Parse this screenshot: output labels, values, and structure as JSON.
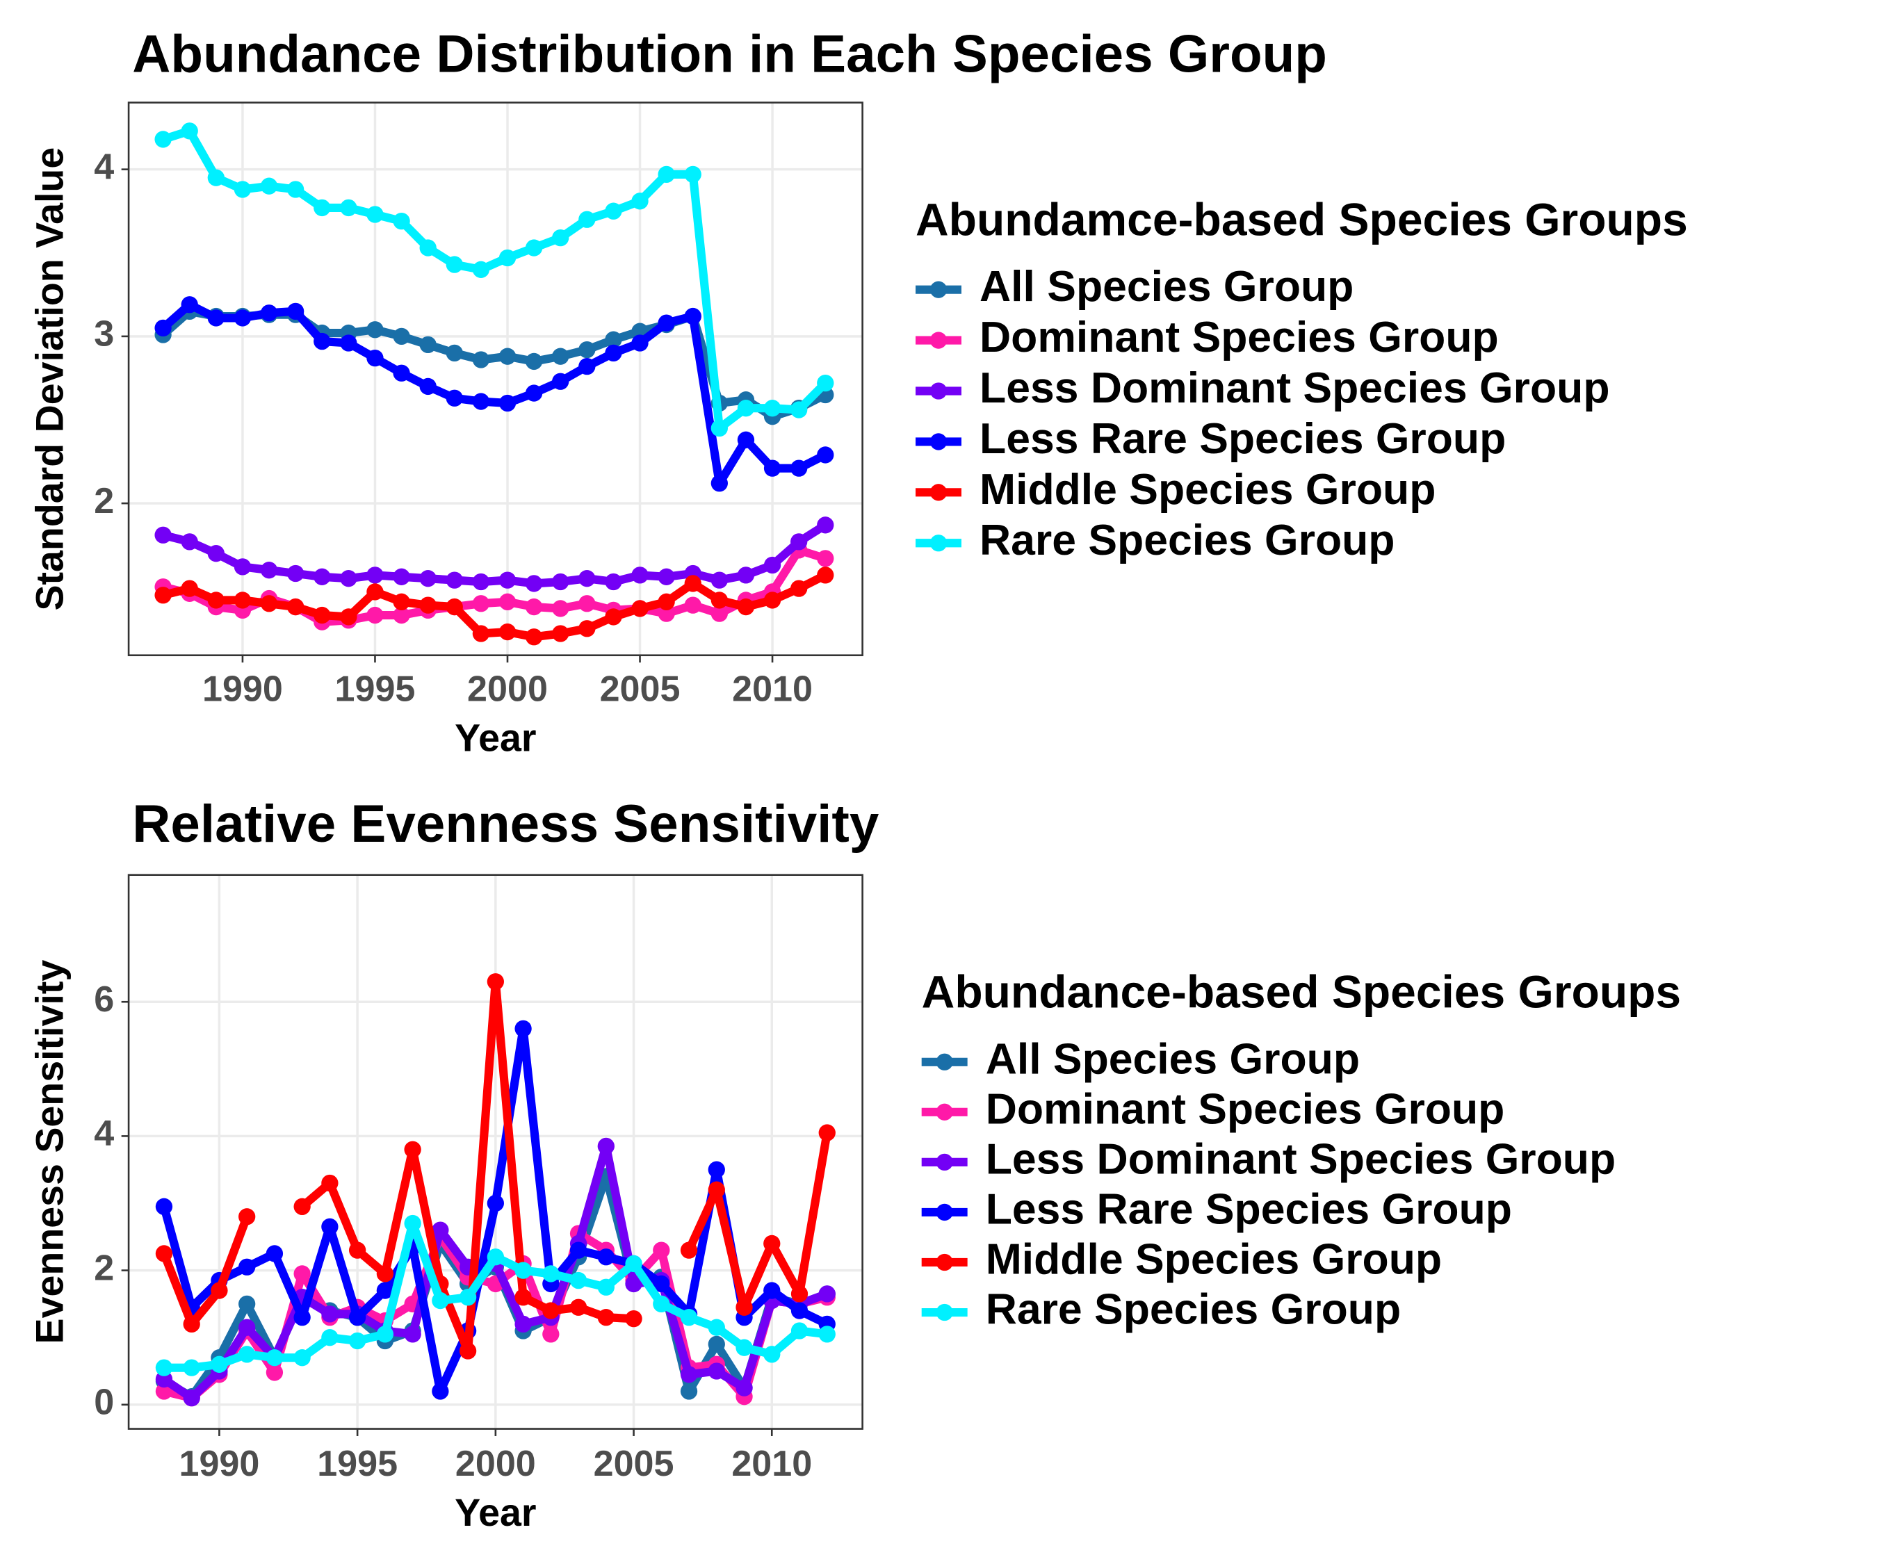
{
  "chart_data": [
    {
      "type": "line",
      "title": "Abundance Distribution in Each Species Group",
      "x_label": "Year",
      "y_label": "Standard Deviation Value",
      "legend_title": "Abundamce-based Species Groups",
      "legend_position": "right",
      "grid": true,
      "x": [
        1987,
        1988,
        1989,
        1990,
        1991,
        1992,
        1993,
        1994,
        1995,
        1996,
        1997,
        1998,
        1999,
        2000,
        2001,
        2002,
        2003,
        2004,
        2005,
        2006,
        2007,
        2008,
        2009,
        2010,
        2011,
        2012
      ],
      "xlim": [
        1985.7,
        2013.4
      ],
      "xticks": [
        1990,
        1995,
        2000,
        2005,
        2010
      ],
      "ylim": [
        1.09,
        4.4
      ],
      "yticks": [
        2,
        3,
        4
      ],
      "series": [
        {
          "name": "All Species Group",
          "color": "#1a6fa8",
          "values": [
            3.01,
            3.15,
            3.12,
            3.12,
            3.13,
            3.13,
            3.02,
            3.02,
            3.04,
            3.0,
            2.95,
            2.9,
            2.86,
            2.88,
            2.85,
            2.88,
            2.92,
            2.98,
            3.03,
            3.07,
            3.12,
            2.6,
            2.62,
            2.52,
            2.57,
            2.65
          ]
        },
        {
          "name": "Dominant Species Group",
          "color": "#ff19a8",
          "values": [
            1.5,
            1.46,
            1.38,
            1.36,
            1.43,
            1.38,
            1.29,
            1.3,
            1.33,
            1.33,
            1.36,
            1.38,
            1.4,
            1.41,
            1.38,
            1.37,
            1.4,
            1.36,
            1.37,
            1.34,
            1.39,
            1.34,
            1.42,
            1.47,
            1.72,
            1.67
          ]
        },
        {
          "name": "Less Dominant Species Group",
          "color": "#7300f5",
          "values": [
            1.81,
            1.77,
            1.7,
            1.62,
            1.6,
            1.58,
            1.56,
            1.55,
            1.57,
            1.56,
            1.55,
            1.54,
            1.53,
            1.54,
            1.52,
            1.53,
            1.55,
            1.53,
            1.57,
            1.56,
            1.58,
            1.54,
            1.57,
            1.63,
            1.77,
            1.87
          ]
        },
        {
          "name": "Less Rare Species Group",
          "color": "#0000ff",
          "values": [
            3.05,
            3.19,
            3.11,
            3.11,
            3.14,
            3.15,
            2.97,
            2.96,
            2.87,
            2.78,
            2.7,
            2.63,
            2.61,
            2.6,
            2.66,
            2.73,
            2.82,
            2.9,
            2.96,
            3.08,
            3.12,
            2.12,
            2.38,
            2.21,
            2.21,
            2.29
          ]
        },
        {
          "name": "Middle Species Group",
          "color": "#ff0000",
          "values": [
            1.45,
            1.49,
            1.42,
            1.42,
            1.4,
            1.38,
            1.33,
            1.32,
            1.47,
            1.41,
            1.39,
            1.38,
            1.22,
            1.23,
            1.2,
            1.22,
            1.25,
            1.32,
            1.37,
            1.41,
            1.52,
            1.42,
            1.38,
            1.42,
            1.49,
            1.57
          ]
        },
        {
          "name": "Rare Species Group",
          "color": "#00f0ff",
          "values": [
            4.18,
            4.23,
            3.95,
            3.88,
            3.9,
            3.88,
            3.77,
            3.77,
            3.73,
            3.69,
            3.53,
            3.43,
            3.4,
            3.47,
            3.53,
            3.59,
            3.7,
            3.75,
            3.81,
            3.97,
            3.97,
            2.45,
            2.57,
            2.57,
            2.56,
            2.72
          ]
        }
      ]
    },
    {
      "type": "line",
      "title": "Relative Evenness Sensitivity",
      "x_label": "Year",
      "y_label": "Evenness Sensitivity",
      "legend_title": "Abundance-based Species Groups",
      "legend_position": "right",
      "grid": true,
      "x": [
        1988,
        1989,
        1990,
        1991,
        1992,
        1993,
        1994,
        1995,
        1996,
        1997,
        1998,
        1999,
        2000,
        2001,
        2002,
        2003,
        2004,
        2005,
        2006,
        2007,
        2008,
        2009,
        2010,
        2011,
        2012
      ],
      "xlim": [
        1986.72,
        2013.28
      ],
      "xticks": [
        1990,
        1995,
        2000,
        2005,
        2010
      ],
      "ylim": [
        -0.36,
        7.89
      ],
      "yticks": [
        0,
        2,
        4,
        6
      ],
      "series": [
        {
          "name": "All Species Group",
          "color": "#1a6fa8",
          "values": [
            0.35,
            0.12,
            0.7,
            1.5,
            0.7,
            1.6,
            1.4,
            1.3,
            0.95,
            1.1,
            2.4,
            1.8,
            2.05,
            1.1,
            1.3,
            2.2,
            3.4,
            1.8,
            1.9,
            0.2,
            0.9,
            0.25,
            1.6,
            1.5,
            1.65
          ]
        },
        {
          "name": "Dominant Species Group",
          "color": "#ff19a8",
          "values": [
            0.2,
            0.1,
            0.45,
            1.1,
            0.48,
            1.95,
            1.3,
            1.45,
            1.25,
            1.5,
            2.5,
            1.9,
            1.8,
            2.1,
            1.05,
            2.55,
            2.3,
            1.85,
            2.3,
            0.55,
            0.6,
            0.12,
            1.55,
            1.5,
            1.6
          ]
        },
        {
          "name": "Less Dominant Species Group",
          "color": "#7300f5",
          "values": [
            0.38,
            0.1,
            0.5,
            1.15,
            0.7,
            1.6,
            1.35,
            1.35,
            1.1,
            1.05,
            2.6,
            2.05,
            2.1,
            1.2,
            1.3,
            2.4,
            3.85,
            1.8,
            1.85,
            0.45,
            0.5,
            0.25,
            1.55,
            1.5,
            1.65
          ]
        },
        {
          "name": "Less Rare Species Group",
          "color": "#0000ff",
          "values": [
            2.95,
            1.45,
            1.85,
            2.05,
            2.25,
            1.3,
            2.65,
            1.3,
            1.7,
            2.35,
            0.2,
            1.1,
            3.0,
            5.6,
            1.8,
            2.3,
            2.2,
            2.1,
            1.8,
            1.35,
            3.5,
            1.3,
            1.7,
            1.4,
            1.2
          ]
        },
        {
          "name": "Middle Species Group",
          "color": "#ff0000",
          "values": [
            2.25,
            1.2,
            1.7,
            2.8,
            null,
            2.95,
            3.3,
            2.3,
            1.95,
            3.8,
            1.8,
            0.8,
            6.3,
            1.6,
            1.4,
            1.45,
            1.3,
            1.28,
            null,
            2.3,
            3.2,
            1.45,
            2.4,
            1.65,
            4.05
          ]
        },
        {
          "name": "Rare Species Group",
          "color": "#00f0ff",
          "values": [
            0.55,
            0.55,
            0.6,
            0.75,
            0.7,
            0.7,
            1.0,
            0.95,
            1.05,
            2.7,
            1.55,
            1.6,
            2.2,
            2.0,
            1.95,
            1.85,
            1.75,
            2.1,
            1.5,
            1.3,
            1.15,
            0.85,
            0.75,
            1.1,
            1.05
          ]
        }
      ]
    }
  ]
}
